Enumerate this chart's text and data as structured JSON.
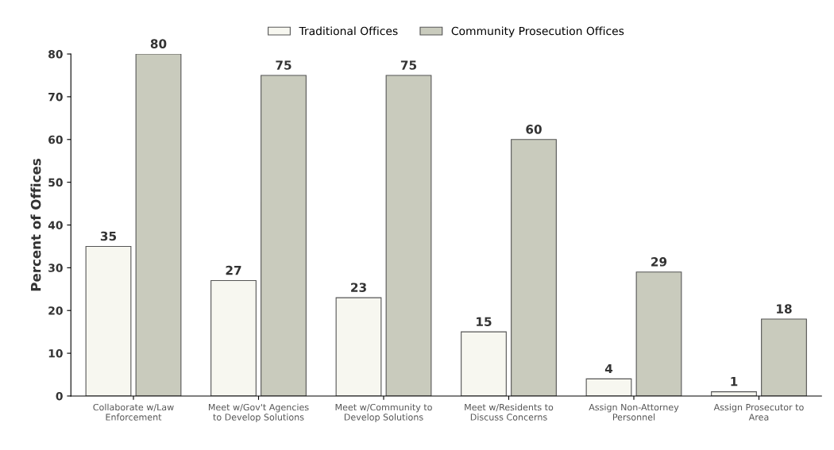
{
  "chart_data": {
    "type": "bar",
    "ylabel": "Percent of Offices",
    "categories": [
      "Collaborate w/Law\nEnforcement",
      "Meet w/Gov't Agencies\nto Develop Solutions",
      "Meet w/Community to\nDevelop Solutions",
      "Meet w/Residents to\nDiscuss Concerns",
      "Assign Non-Attorney\nPersonnel",
      "Assign Prosecutor to\nArea"
    ],
    "series": [
      {
        "name": "Traditional Offices",
        "color": "#f7f7f0",
        "values": [
          35,
          27,
          23,
          15,
          4,
          1
        ]
      },
      {
        "name": "Community Prosecution Offices",
        "color": "#c9cbbd",
        "values": [
          80,
          75,
          75,
          60,
          29,
          18
        ]
      }
    ],
    "ylim": [
      0,
      80
    ],
    "yticks": [
      0,
      10,
      20,
      30,
      40,
      50,
      60,
      70,
      80
    ],
    "data_labels": true,
    "legend": "top",
    "grid": false
  }
}
